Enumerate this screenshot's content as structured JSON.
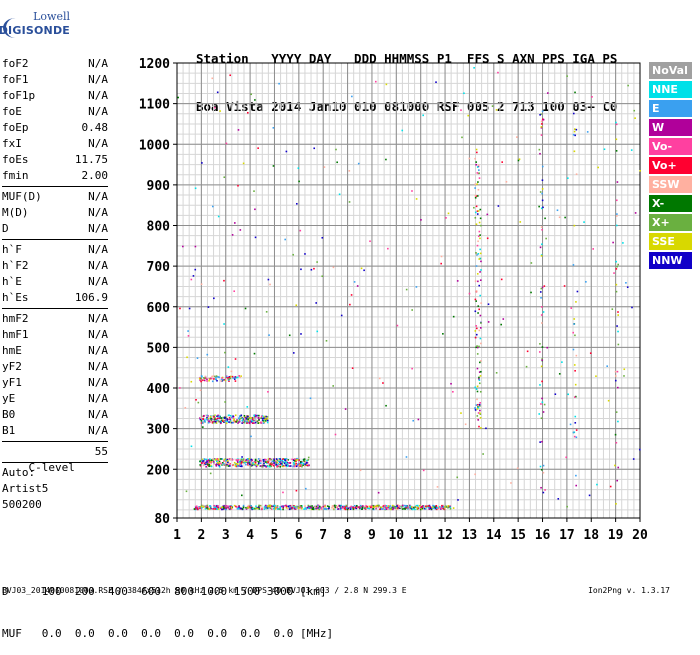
{
  "logo": {
    "line1": "Lowell",
    "line2": "DIGISONDE"
  },
  "header": {
    "line1": "Station   YYYY DAY   DDD HHMMSS P1  FFS S AXN PPS IGA PS",
    "line2": "Boa Vista 2014 Jan10 010 081000 RSF 005 2 713 100 03+ C0"
  },
  "params": {
    "group1": [
      {
        "label": "foF2",
        "value": "N/A"
      },
      {
        "label": "foF1",
        "value": "N/A"
      },
      {
        "label": "foF1p",
        "value": "N/A"
      },
      {
        "label": "foE",
        "value": "N/A"
      },
      {
        "label": "foEp",
        "value": "0.48"
      },
      {
        "label": "fxI",
        "value": "N/A"
      },
      {
        "label": "foEs",
        "value": "11.75"
      },
      {
        "label": "fmin",
        "value": "2.00"
      }
    ],
    "group2": [
      {
        "label": "MUF(D)",
        "value": "N/A"
      },
      {
        "label": "M(D)",
        "value": "N/A"
      },
      {
        "label": "D",
        "value": "N/A"
      }
    ],
    "group3": [
      {
        "label": "h`F",
        "value": "N/A"
      },
      {
        "label": "h`F2",
        "value": "N/A"
      },
      {
        "label": "h`E",
        "value": "N/A"
      },
      {
        "label": "h`Es",
        "value": "106.9"
      }
    ],
    "group4": [
      {
        "label": "hmF2",
        "value": "N/A"
      },
      {
        "label": "hmF1",
        "value": "N/A"
      },
      {
        "label": "hmE",
        "value": "N/A"
      },
      {
        "label": "yF2",
        "value": "N/A"
      },
      {
        "label": "yF1",
        "value": "N/A"
      },
      {
        "label": "yE",
        "value": "N/A"
      },
      {
        "label": "B0",
        "value": "N/A"
      },
      {
        "label": "B1",
        "value": "N/A"
      }
    ],
    "clevel": {
      "label": "C-level",
      "value": "55"
    },
    "auto": [
      "Auto:",
      "Artist5",
      "500200"
    ]
  },
  "legend": [
    {
      "label": "NoVal",
      "color": "#a0a0a0"
    },
    {
      "label": "NNE",
      "color": "#00e0e8"
    },
    {
      "label": "E",
      "color": "#3aa0f0"
    },
    {
      "label": "W",
      "color": "#b0009a"
    },
    {
      "label": "Vo-",
      "color": "#ff40a0"
    },
    {
      "label": "Vo+",
      "color": "#ff0030"
    },
    {
      "label": "SSW",
      "color": "#ffb0a0"
    },
    {
      "label": "X-",
      "color": "#007800"
    },
    {
      "label": "X+",
      "color": "#6ab040"
    },
    {
      "label": "SSE",
      "color": "#d8d800"
    },
    {
      "label": "NNW",
      "color": "#1000c8"
    }
  ],
  "table": {
    "line1": "D     100  200  400  600  800 1000 1500 3000 [km]",
    "line2": "MUF   0.0  0.0  0.0  0.0  0.0  0.0  0.0  0.0 [MHz]"
  },
  "footer": "BVJ03_2014010081000.RSF / 384fx512h 50 kHz 2.5 km / DPS-4D BVJ03 003 / 2.8 N 299.3 E",
  "version": "Ion2Png v. 1.3.17",
  "chart_data": {
    "type": "scatter",
    "x_ticks": [
      "1",
      "2",
      "3",
      "4",
      "5",
      "6",
      "7",
      "8",
      "9",
      "10",
      "11",
      "12",
      "13",
      "14",
      "15",
      "16",
      "17",
      "18",
      "19",
      "20"
    ],
    "y_ticks": [
      "80",
      "200",
      "300",
      "400",
      "500",
      "600",
      "700",
      "800",
      "900",
      "1000",
      "1100",
      "1200"
    ],
    "xlim": [
      1,
      20
    ],
    "ylim": [
      80,
      1200
    ],
    "grid": true,
    "legend_position": "right",
    "traces": [
      {
        "label": "Es",
        "x": [
          1.7,
          12.2
        ],
        "y": [
          108,
          108
        ]
      },
      {
        "label": "multi-hop 2",
        "x": [
          1.9,
          6.4
        ],
        "y": [
          218,
          218
        ]
      },
      {
        "label": "multi-hop 3",
        "x": [
          1.9,
          4.7
        ],
        "y": [
          325,
          325
        ]
      },
      {
        "label": "multi-hop 4",
        "x": [
          1.9,
          3.6
        ],
        "y": [
          425,
          425
        ]
      }
    ]
  }
}
